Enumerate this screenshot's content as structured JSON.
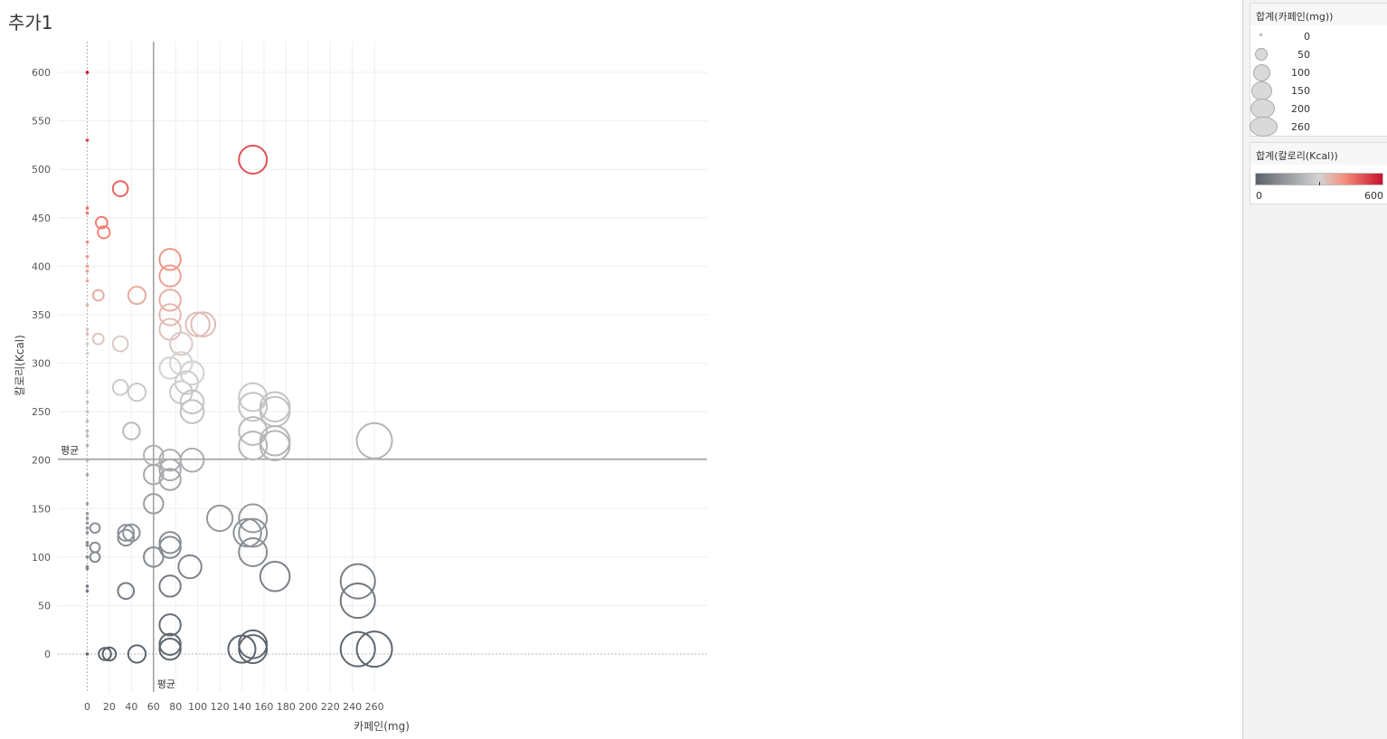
{
  "sheet": {
    "title": "추가1"
  },
  "legends": {
    "size": {
      "title": "합계(카페인(mg))",
      "items": [
        "0",
        "50",
        "100",
        "150",
        "200",
        "260"
      ]
    },
    "color": {
      "title": "합계(칼로리(Kcal))",
      "min_label": "0",
      "max_label": "600",
      "colors": [
        "#5b636b",
        "#d4d4d4",
        "#f58f7c",
        "#c8102e"
      ]
    }
  },
  "chart_data": {
    "type": "scatter",
    "xlabel": "카페인(mg)",
    "ylabel": "칼로리(Kcal)",
    "xlim": [
      -14,
      280
    ],
    "ylim": [
      -40,
      625
    ],
    "x_ticks": [
      0,
      20,
      40,
      60,
      80,
      100,
      120,
      140,
      160,
      180,
      200,
      220,
      240,
      260
    ],
    "y_ticks": [
      0,
      50,
      100,
      150,
      200,
      250,
      300,
      350,
      400,
      450,
      500,
      550,
      600
    ],
    "grid": true,
    "reference_lines": [
      {
        "axis": "x",
        "value": 60,
        "label": "평균"
      },
      {
        "axis": "y",
        "value": 201,
        "label": "평균"
      }
    ],
    "marker": "hollow-circle sized by 카페인(mg), colored by 칼로리(Kcal)",
    "points": [
      [
        0,
        600
      ],
      [
        0,
        530
      ],
      [
        0,
        460
      ],
      [
        0,
        455
      ],
      [
        0,
        425
      ],
      [
        0,
        410
      ],
      [
        0,
        400
      ],
      [
        0,
        395
      ],
      [
        0,
        385
      ],
      [
        0,
        360
      ],
      [
        0,
        335
      ],
      [
        0,
        330
      ],
      [
        0,
        320
      ],
      [
        0,
        310
      ],
      [
        0,
        270
      ],
      [
        0,
        260
      ],
      [
        0,
        250
      ],
      [
        0,
        240
      ],
      [
        0,
        230
      ],
      [
        0,
        225
      ],
      [
        0,
        215
      ],
      [
        0,
        200
      ],
      [
        0,
        185
      ],
      [
        0,
        155
      ],
      [
        0,
        145
      ],
      [
        0,
        140
      ],
      [
        0,
        135
      ],
      [
        0,
        130
      ],
      [
        0,
        125
      ],
      [
        0,
        115
      ],
      [
        0,
        112
      ],
      [
        0,
        100
      ],
      [
        0,
        90
      ],
      [
        0,
        88
      ],
      [
        0,
        70
      ],
      [
        0,
        65
      ],
      [
        0,
        0
      ],
      [
        7,
        130
      ],
      [
        7,
        110
      ],
      [
        7,
        100
      ],
      [
        10,
        370
      ],
      [
        10,
        325
      ],
      [
        13,
        445
      ],
      [
        15,
        435
      ],
      [
        16,
        0
      ],
      [
        20,
        0
      ],
      [
        30,
        480
      ],
      [
        30,
        320
      ],
      [
        30,
        275
      ],
      [
        35,
        125
      ],
      [
        35,
        120
      ],
      [
        35,
        65
      ],
      [
        40,
        230
      ],
      [
        40,
        125
      ],
      [
        45,
        370
      ],
      [
        45,
        270
      ],
      [
        45,
        0
      ],
      [
        60,
        205
      ],
      [
        60,
        185
      ],
      [
        60,
        155
      ],
      [
        60,
        100
      ],
      [
        75,
        407
      ],
      [
        75,
        390
      ],
      [
        75,
        365
      ],
      [
        75,
        350
      ],
      [
        75,
        335
      ],
      [
        75,
        295
      ],
      [
        75,
        200
      ],
      [
        75,
        190
      ],
      [
        75,
        180
      ],
      [
        75,
        115
      ],
      [
        75,
        110
      ],
      [
        75,
        70
      ],
      [
        75,
        30
      ],
      [
        75,
        10
      ],
      [
        75,
        5
      ],
      [
        85,
        320
      ],
      [
        85,
        300
      ],
      [
        85,
        270
      ],
      [
        90,
        280
      ],
      [
        93,
        90
      ],
      [
        95,
        290
      ],
      [
        95,
        260
      ],
      [
        95,
        250
      ],
      [
        95,
        200
      ],
      [
        100,
        340
      ],
      [
        105,
        340
      ],
      [
        120,
        140
      ],
      [
        140,
        5
      ],
      [
        145,
        125
      ],
      [
        150,
        510
      ],
      [
        150,
        265
      ],
      [
        150,
        255
      ],
      [
        150,
        230
      ],
      [
        150,
        215
      ],
      [
        150,
        140
      ],
      [
        150,
        125
      ],
      [
        150,
        105
      ],
      [
        150,
        10
      ],
      [
        150,
        5
      ],
      [
        170,
        255
      ],
      [
        170,
        250
      ],
      [
        170,
        220
      ],
      [
        170,
        215
      ],
      [
        170,
        80
      ],
      [
        245,
        75
      ],
      [
        245,
        55
      ],
      [
        245,
        5
      ],
      [
        260,
        220
      ],
      [
        260,
        5
      ]
    ]
  }
}
